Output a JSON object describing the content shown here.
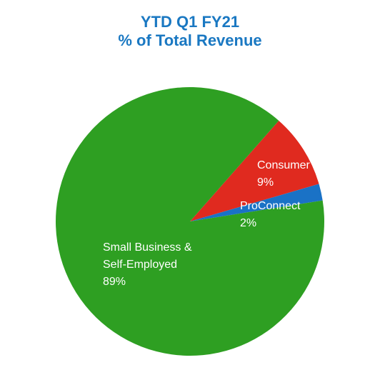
{
  "chart_data": {
    "type": "pie",
    "title": "YTD Q1 FY21",
    "subtitle": "% of Total Revenue",
    "categories": [
      "Consumer",
      "ProConnect",
      "Small Business & Self-Employed"
    ],
    "values": [
      9,
      2,
      89
    ],
    "value_labels": [
      "9%",
      "2%",
      "89%"
    ],
    "colors": [
      "#e02a1f",
      "#1a72c6",
      "#2e9f22"
    ]
  }
}
